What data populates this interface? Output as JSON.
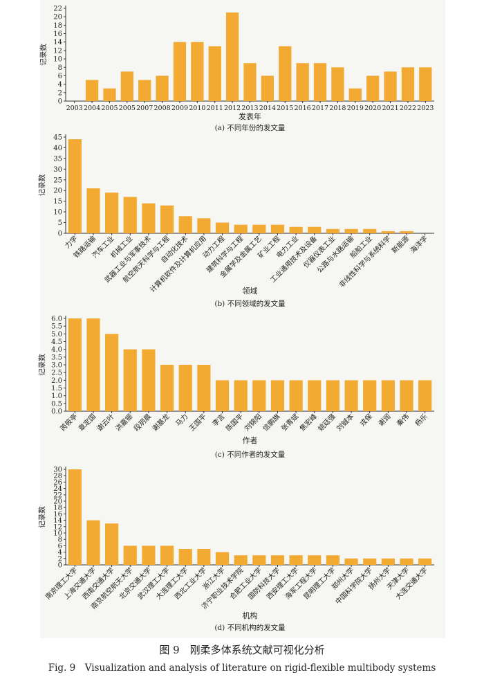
{
  "figure": {
    "title_cn": "图 9　刚柔多体系统文献可视化分析",
    "title_en": "Fig. 9　Visualization and analysis of literature on rigid-flexible multibody systems"
  },
  "colors": {
    "bar": "#f3aa33",
    "axis": "#333333",
    "panel_bg": "#f6f6f2"
  },
  "chart_data": [
    {
      "type": "bar",
      "caption": "(a) 不同年份的发文量",
      "xlabel": "发表年",
      "ylabel": "记录数",
      "ylim": [
        0,
        22
      ],
      "yticks": [
        0,
        2,
        4,
        6,
        8,
        10,
        12,
        14,
        16,
        18,
        20,
        22
      ],
      "categories": [
        "2003",
        "2004",
        "2005",
        "2005",
        "2007",
        "2008",
        "2009",
        "2010",
        "2011",
        "2012",
        "2013",
        "2014",
        "2015",
        "2016",
        "2017",
        "2018",
        "2019",
        "2020",
        "2021",
        "2022",
        "2023"
      ],
      "values": [
        0,
        5,
        3,
        7,
        5,
        6,
        14,
        14,
        13,
        21,
        9,
        6,
        13,
        9,
        9,
        8,
        3,
        6,
        7,
        8,
        8
      ],
      "rotated_labels": false
    },
    {
      "type": "bar",
      "caption": "(b) 不同领域的发文量",
      "xlabel": "领域",
      "ylabel": "记录数",
      "ylim": [
        0,
        45
      ],
      "yticks": [
        0,
        5,
        10,
        15,
        20,
        25,
        30,
        35,
        40,
        45
      ],
      "categories": [
        "力学",
        "铁路运输",
        "汽车工业",
        "机械工业",
        "武器工业与军事技术",
        "航空航天科学与工程",
        "自动化技术",
        "计算机软件及计算机应用",
        "动力工程",
        "建筑科学与工程",
        "金属学及金属工艺",
        "矿业工程",
        "电力工业",
        "工业通用技术及设备",
        "仪器仪表工业",
        "公路与水路运输",
        "船舶工业",
        "非线性科学与系统科学",
        "新能源",
        "海洋学"
      ],
      "values": [
        44,
        21,
        19,
        17,
        14,
        13,
        8,
        7,
        5,
        4,
        4,
        4,
        3,
        3,
        2,
        2,
        2,
        1,
        1,
        0
      ],
      "rotated_labels": true
    },
    {
      "type": "bar",
      "caption": "(c) 不同作者的发文量",
      "xlabel": "作者",
      "ylabel": "记录数",
      "ylim": [
        0,
        6
      ],
      "yticks": [
        0,
        0.5,
        1.0,
        1.5,
        2.0,
        2.5,
        3.0,
        3.5,
        4.0,
        4.5,
        5.0,
        5.5,
        6.0
      ],
      "categories": [
        "芮筱亭",
        "章定国",
        "谢云叶",
        "洪嘉振",
        "段玥晨",
        "谢基龙",
        "马力",
        "王国平",
        "李言",
        "陈国平",
        "刘锦阳",
        "信鹏旗",
        "张青斌",
        "焦宏峰",
        "姚廷强",
        "刘铖本",
        "戎保",
        "谢润",
        "秦伟",
        "杨乐"
      ],
      "values": [
        6,
        6,
        5,
        4,
        4,
        3,
        3,
        3,
        2,
        2,
        2,
        2,
        2,
        2,
        2,
        2,
        2,
        2,
        2,
        2
      ],
      "rotated_labels": true
    },
    {
      "type": "bar",
      "caption": "(d) 不同机构的发文量",
      "xlabel": "机构",
      "ylabel": "记录数",
      "ylim": [
        0,
        30
      ],
      "yticks": [
        0,
        2,
        4,
        6,
        8,
        10,
        12,
        14,
        16,
        18,
        20,
        22,
        24,
        26,
        28,
        30
      ],
      "categories": [
        "南京理工大学",
        "上海交通大学",
        "西南交通大学",
        "南京航空航天大学",
        "北京交通大学",
        "武汉理工大学",
        "大连理工大学",
        "西北工业大学",
        "浙江大学",
        "济宁职业技术学院",
        "合肥工业大学",
        "国防科技大学",
        "西安理工大学",
        "海军工程大学",
        "昆明理工大学",
        "郑州大学",
        "中国科学院大学",
        "扬州大学",
        "天津大学",
        "大连交通大学"
      ],
      "values": [
        30,
        14,
        13,
        6,
        6,
        6,
        5,
        5,
        4,
        3,
        3,
        3,
        3,
        3,
        3,
        2,
        2,
        2,
        2,
        2
      ],
      "rotated_labels": true
    }
  ]
}
